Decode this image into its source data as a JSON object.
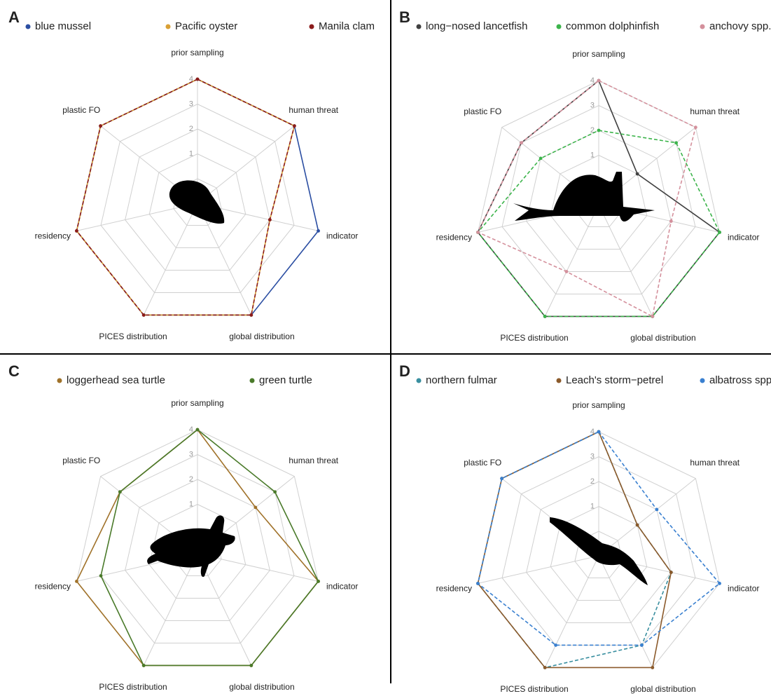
{
  "chart_data": [
    {
      "type": "radar",
      "panel": "A",
      "categories": [
        "prior sampling",
        "human threat",
        "indicator",
        "global distribution",
        "PICES distribution",
        "residency",
        "plastic FO"
      ],
      "series": [
        {
          "name": "blue mussel",
          "color": "#2b4ea2",
          "dashed": false,
          "values": [
            4,
            4,
            4,
            4,
            4,
            4,
            4
          ]
        },
        {
          "name": "Pacific oyster",
          "color": "#d9a035",
          "dashed": false,
          "values": [
            4,
            4,
            2,
            4,
            4,
            4,
            4
          ]
        },
        {
          "name": "Manila clam",
          "color": "#8b1c1c",
          "dashed": true,
          "values": [
            4,
            4,
            2,
            4,
            4,
            4,
            4
          ]
        }
      ],
      "ylim": [
        0,
        4
      ],
      "yticks": [
        1,
        2,
        3,
        4
      ]
    },
    {
      "type": "radar",
      "panel": "B",
      "categories": [
        "prior sampling",
        "human threat",
        "indicator",
        "global distribution",
        "PICES distribution",
        "residency",
        "plastic FO"
      ],
      "series": [
        {
          "name": "long−nosed lancetfish",
          "color": "#404040",
          "dashed": false,
          "values": [
            4,
            1,
            4,
            4,
            4,
            4,
            3
          ]
        },
        {
          "name": "common dolphinfish",
          "color": "#3cb44b",
          "dashed": true,
          "values": [
            2,
            3,
            4,
            4,
            4,
            4,
            2
          ]
        },
        {
          "name": "anchovy spp.",
          "color": "#d4909c",
          "dashed": true,
          "values": [
            4,
            4,
            2,
            4,
            2,
            4,
            3
          ]
        }
      ],
      "ylim": [
        0,
        4
      ],
      "yticks": [
        1,
        2,
        3,
        4
      ]
    },
    {
      "type": "radar",
      "panel": "C",
      "categories": [
        "prior sampling",
        "human threat",
        "indicator",
        "global distribution",
        "PICES distribution",
        "residency",
        "plastic FO"
      ],
      "series": [
        {
          "name": "loggerhead sea turtle",
          "color": "#a0722a",
          "dashed": false,
          "values": [
            4,
            2,
            4,
            4,
            4,
            4,
            3
          ]
        },
        {
          "name": "green turtle",
          "color": "#4a7a2a",
          "dashed": false,
          "values": [
            4,
            3,
            4,
            4,
            4,
            3,
            3
          ]
        }
      ],
      "ylim": [
        0,
        4
      ],
      "yticks": [
        1,
        2,
        3,
        4
      ]
    },
    {
      "type": "radar",
      "panel": "D",
      "categories": [
        "prior sampling",
        "human threat",
        "indicator",
        "global distribution",
        "PICES distribution",
        "residency",
        "plastic FO"
      ],
      "series": [
        {
          "name": "northern fulmar",
          "color": "#3a8fa0",
          "dashed": true,
          "values": [
            4,
            1,
            2,
            3,
            4,
            4,
            4
          ]
        },
        {
          "name": "Leach's storm−petrel",
          "color": "#8b5a2b",
          "dashed": false,
          "values": [
            4,
            1,
            2,
            4,
            4,
            4,
            4
          ]
        },
        {
          "name": "albatross spp.",
          "color": "#3a80d0",
          "dashed": true,
          "values": [
            4,
            2,
            4,
            3,
            3,
            4,
            4
          ]
        }
      ],
      "ylim": [
        0,
        4
      ],
      "yticks": [
        1,
        2,
        3,
        4
      ]
    }
  ]
}
